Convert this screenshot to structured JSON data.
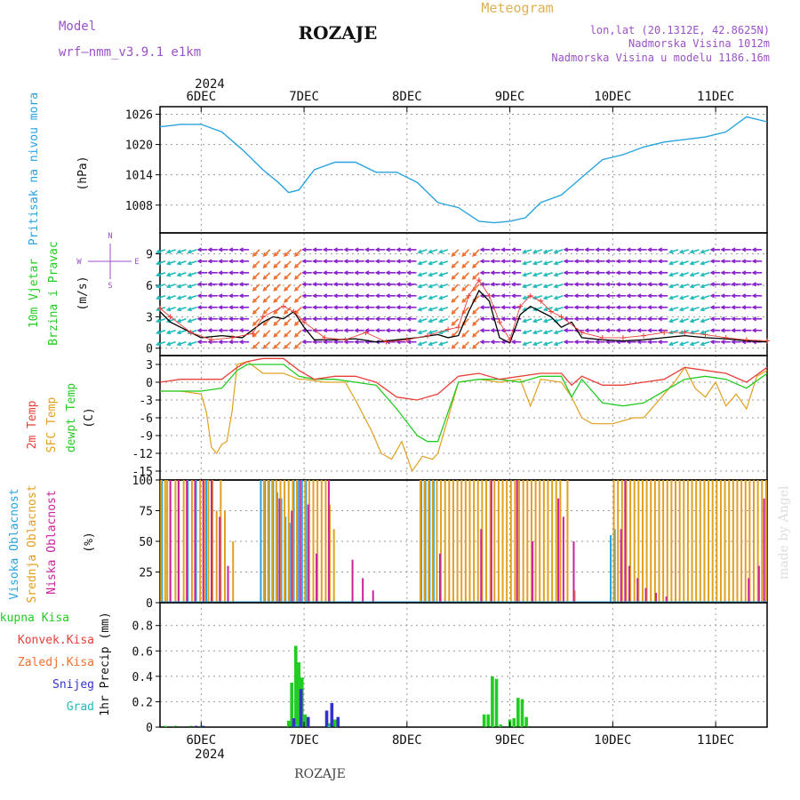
{
  "header": {
    "model_label": "Model",
    "model_name": "wrf–nmm_v3.9.1  e1km",
    "station": "ROZAJE",
    "meteogram": "Meteogram",
    "lonlat": "lon,lat (20.1312E, 42.8625N)",
    "elevation": "Nadmorska Visina 1012m",
    "model_elevation": "Nadmorska Visina u modelu 1186.16m",
    "watermark": "made by Angel",
    "footer_station": "ROZAJE"
  },
  "colors": {
    "pressure": "#29a3e0",
    "temp2m": "#e8403a",
    "sfc_temp": "#e0a020",
    "dewpoint": "#22cc22",
    "high_cloud": "#29a3e0",
    "mid_cloud": "#e0a020",
    "low_cloud": "#cc2299",
    "total_precip": "#22cc22",
    "convective": "#e8403a",
    "freezing": "#f07030",
    "snow": "#3333cc",
    "hail": "#22bbbb",
    "wind_arrow_slow": "#8822cc",
    "wind_arrow_fast": "#f07030",
    "grid": "#999999"
  },
  "time_axis": {
    "year": "2024",
    "days": [
      "6DEC",
      "7DEC",
      "8DEC",
      "9DEC",
      "10DEC",
      "11DEC"
    ],
    "start_day": 5.6,
    "end_day": 11.5
  },
  "chart_data": [
    {
      "type": "line",
      "panel": "pressure",
      "ylabel": [
        "Pritisak na nivou mora",
        "(hPa)"
      ],
      "yticks": [
        1008,
        1014,
        1020,
        1026
      ],
      "ylim": [
        1002.5,
        1027.5
      ],
      "grid": true,
      "series": [
        {
          "x": [
            5.6,
            5.8,
            6.0,
            6.2,
            6.4,
            6.6,
            6.75,
            6.85,
            6.95,
            7.1,
            7.3,
            7.5,
            7.7,
            7.9,
            8.1,
            8.3,
            8.5,
            8.7,
            8.85,
            9.0,
            9.15,
            9.3,
            9.5,
            9.7,
            9.9,
            10.1,
            10.3,
            10.5,
            10.7,
            10.9,
            11.1,
            11.3,
            11.5
          ],
          "y": [
            1023.5,
            1024,
            1024,
            1022.5,
            1019,
            1015,
            1012.5,
            1010.5,
            1011,
            1015,
            1016.5,
            1016.5,
            1014.5,
            1014.5,
            1012.5,
            1008.5,
            1007.5,
            1004.8,
            1004.5,
            1004.8,
            1005.5,
            1008.5,
            1010,
            1013.5,
            1017,
            1018,
            1019.5,
            1020.5,
            1021,
            1021.5,
            1022.5,
            1025.5,
            1024.5
          ]
        }
      ]
    },
    {
      "type": "line",
      "panel": "wind",
      "ylabel": [
        "10m Vjetar",
        "Brzina i Pravac",
        "(m/s)"
      ],
      "compass": {
        "n": "N",
        "s": "S",
        "e": "E",
        "w": "W"
      },
      "yticks": [
        0,
        3,
        6,
        9
      ],
      "ylim": [
        -0.7,
        11
      ],
      "grid": true,
      "series": [
        {
          "name": "speed",
          "x": [
            5.6,
            5.7,
            5.8,
            6.0,
            6.2,
            6.4,
            6.6,
            6.7,
            6.8,
            6.9,
            7.0,
            7.1,
            7.3,
            7.5,
            7.7,
            7.9,
            8.1,
            8.3,
            8.4,
            8.5,
            8.6,
            8.7,
            8.8,
            8.9,
            9.0,
            9.1,
            9.2,
            9.3,
            9.4,
            9.5,
            9.6,
            9.7,
            9.9,
            10.1,
            10.3,
            10.5,
            10.7,
            10.9,
            11.1,
            11.3,
            11.5
          ],
          "y": [
            3.5,
            2.5,
            2.0,
            1.0,
            1.2,
            1.0,
            2.5,
            3.0,
            2.8,
            3.5,
            2.0,
            0.8,
            0.8,
            0.9,
            0.6,
            0.8,
            1.0,
            1.3,
            1.0,
            1.2,
            3.5,
            5.5,
            4.5,
            1.0,
            0.5,
            3.2,
            4.0,
            3.5,
            3.0,
            2.0,
            2.5,
            1.0,
            0.8,
            0.7,
            0.8,
            1.0,
            1.2,
            1.0,
            0.9,
            0.7,
            0.6
          ]
        },
        {
          "name": "gust",
          "x": [
            5.6,
            5.7,
            5.9,
            6.1,
            6.3,
            6.5,
            6.6,
            6.8,
            6.9,
            7.0,
            7.2,
            7.4,
            7.6,
            7.8,
            8.0,
            8.2,
            8.4,
            8.5,
            8.6,
            8.7,
            8.8,
            8.9,
            9.0,
            9.1,
            9.2,
            9.3,
            9.4,
            9.5,
            9.7,
            9.9,
            10.1,
            10.3,
            10.5,
            10.7,
            10.9,
            11.1,
            11.3,
            11.5
          ],
          "y": [
            3.8,
            3.0,
            1.5,
            0.8,
            1.0,
            1.4,
            3.0,
            4.0,
            3.5,
            2.5,
            1.0,
            0.8,
            1.5,
            0.6,
            0.8,
            1.2,
            1.8,
            2.0,
            5.0,
            6.5,
            5.0,
            2.5,
            0.8,
            4.0,
            5.0,
            4.5,
            3.5,
            3.0,
            1.5,
            1.0,
            1.0,
            1.2,
            1.5,
            1.5,
            1.3,
            1.0,
            0.8,
            0.7
          ]
        }
      ]
    },
    {
      "type": "line",
      "panel": "temperature",
      "ylabel": [
        "2m Temp",
        "SFC Temp",
        "dewpt Temp",
        "(C)"
      ],
      "yticks": [
        3,
        0,
        -3,
        -6,
        -9,
        -12,
        -15
      ],
      "ylim": [
        -16.5,
        4.5
      ],
      "grid": true,
      "series": [
        {
          "name": "2m Temp",
          "x": [
            5.6,
            5.8,
            6.0,
            6.2,
            6.35,
            6.45,
            6.6,
            6.8,
            6.95,
            7.1,
            7.3,
            7.5,
            7.7,
            7.9,
            8.1,
            8.3,
            8.5,
            8.7,
            8.9,
            9.1,
            9.3,
            9.5,
            9.6,
            9.7,
            9.9,
            10.1,
            10.3,
            10.5,
            10.7,
            10.9,
            11.1,
            11.3,
            11.5
          ],
          "y": [
            0,
            0.5,
            0.5,
            0.5,
            2.5,
            3.5,
            4.0,
            4.0,
            2.0,
            0.5,
            1.0,
            1.0,
            0,
            -2.5,
            -3.0,
            -2.0,
            1.0,
            1.5,
            0.5,
            1.0,
            1.5,
            1.5,
            -0.5,
            1.0,
            -0.5,
            -0.5,
            0,
            0.5,
            2.5,
            2.0,
            1.5,
            0,
            2.5
          ]
        },
        {
          "name": "SFC Temp",
          "x": [
            5.6,
            5.8,
            6.0,
            6.05,
            6.1,
            6.15,
            6.2,
            6.25,
            6.3,
            6.35,
            6.45,
            6.6,
            6.8,
            6.95,
            7.0,
            7.2,
            7.4,
            7.5,
            7.65,
            7.75,
            7.85,
            7.95,
            8.05,
            8.15,
            8.25,
            8.3,
            8.5,
            8.7,
            8.9,
            9.1,
            9.2,
            9.3,
            9.5,
            9.6,
            9.7,
            9.8,
            10.0,
            10.2,
            10.3,
            10.5,
            10.6,
            10.7,
            10.8,
            10.9,
            11.0,
            11.1,
            11.2,
            11.3,
            11.4,
            11.5
          ],
          "y": [
            -1.5,
            -1.5,
            -2.0,
            -5.0,
            -11.0,
            -12.0,
            -10.5,
            -10.0,
            -5.0,
            3.0,
            3.5,
            1.5,
            1.5,
            0.5,
            0.5,
            0,
            0,
            -3.0,
            -8.0,
            -12.0,
            -13.0,
            -10.0,
            -15.0,
            -12.5,
            -13.0,
            -12.0,
            0,
            0.5,
            0,
            0.5,
            -4.0,
            0.5,
            0,
            -2.5,
            -6.0,
            -7.0,
            -7.0,
            -6.0,
            -6.0,
            -2.0,
            0,
            2.5,
            -1.0,
            -2.5,
            0,
            -4.0,
            -2.0,
            -4.5,
            1.0,
            2.0
          ]
        },
        {
          "name": "dewpt Temp",
          "x": [
            5.6,
            5.8,
            6.0,
            6.2,
            6.35,
            6.45,
            6.6,
            6.8,
            6.95,
            7.1,
            7.3,
            7.5,
            7.7,
            7.9,
            8.1,
            8.2,
            8.3,
            8.5,
            8.7,
            8.9,
            9.1,
            9.3,
            9.5,
            9.6,
            9.7,
            9.9,
            10.1,
            10.3,
            10.5,
            10.7,
            10.9,
            11.1,
            11.3,
            11.5
          ],
          "y": [
            -1.5,
            -1.5,
            -1.5,
            -1.0,
            2.0,
            3.0,
            3.0,
            3.0,
            1.0,
            0.5,
            0.5,
            0,
            -0.5,
            -4.5,
            -9.0,
            -10.0,
            -10.0,
            0,
            0.5,
            0.5,
            0,
            1.0,
            1.0,
            -2.5,
            0.5,
            -3.5,
            -4.0,
            -3.5,
            -1.5,
            0.5,
            1.0,
            0.5,
            -1.0,
            1.5
          ]
        }
      ]
    },
    {
      "type": "bar",
      "panel": "cloud",
      "ylabel": [
        "Visoka Oblacnost",
        "Srednja Oblacnost",
        "Niska Oblacnost",
        "(%)"
      ],
      "yticks": [
        0,
        25,
        50,
        75,
        100
      ],
      "ylim": [
        0,
        100
      ],
      "grid": true,
      "series": [
        {
          "name": "Visoka Oblacnost",
          "x": [
            5.62,
            5.7,
            5.78,
            5.87,
            5.95,
            6.05,
            6.58,
            6.62,
            6.66,
            6.7,
            6.74,
            6.78,
            6.82,
            6.86,
            6.9,
            6.94,
            6.98,
            7.02,
            8.14,
            8.18,
            8.22,
            8.26,
            9.98,
            10.02
          ],
          "values": [
            100,
            100,
            100,
            100,
            100,
            100,
            100,
            100,
            100,
            100,
            90,
            85,
            70,
            65,
            100,
            100,
            100,
            100,
            100,
            100,
            100,
            100,
            55,
            60
          ]
        },
        {
          "name": "Srednja Oblacnost",
          "x": [
            5.6,
            5.64,
            5.66,
            5.74,
            5.82,
            5.9,
            5.98,
            6.02,
            6.06,
            6.1,
            6.14,
            6.18,
            6.22,
            6.3,
            6.6,
            6.64,
            6.68,
            6.72,
            6.76,
            6.8,
            6.84,
            6.88,
            6.92,
            7.0,
            7.04,
            7.08,
            7.12,
            7.16,
            7.2,
            7.24,
            7.28,
            8.12,
            8.16,
            8.2,
            8.24,
            8.28,
            8.32,
            8.36,
            8.4,
            8.44,
            8.48,
            8.52,
            8.56,
            8.6,
            8.64,
            8.68,
            8.72,
            8.76,
            8.8,
            8.84,
            8.88,
            8.92,
            8.96,
            9.0,
            9.04,
            9.08,
            9.12,
            9.16,
            9.2,
            9.24,
            9.28,
            9.32,
            9.36,
            9.4,
            9.44,
            9.48,
            9.55,
            9.62,
            10.0,
            10.04,
            10.08,
            10.12,
            10.16,
            10.2,
            10.24,
            10.28,
            10.32,
            10.36,
            10.4,
            10.44,
            10.48,
            10.52,
            10.56,
            10.6,
            10.64,
            10.68,
            10.72,
            10.76,
            10.8,
            10.84,
            10.88,
            10.92,
            10.96,
            11.0,
            11.04,
            11.08,
            11.12,
            11.16,
            11.2,
            11.24,
            11.28,
            11.32,
            11.36,
            11.4,
            11.44,
            11.48
          ],
          "values": [
            100,
            100,
            100,
            100,
            100,
            100,
            100,
            100,
            100,
            100,
            75,
            100,
            75,
            50,
            100,
            100,
            100,
            100,
            100,
            100,
            100,
            100,
            100,
            100,
            100,
            100,
            100,
            100,
            100,
            80,
            60,
            100,
            100,
            100,
            100,
            100,
            100,
            100,
            100,
            100,
            100,
            100,
            100,
            100,
            100,
            100,
            100,
            100,
            100,
            100,
            100,
            100,
            100,
            100,
            100,
            100,
            100,
            100,
            100,
            100,
            100,
            100,
            100,
            100,
            100,
            100,
            100,
            10,
            100,
            100,
            100,
            100,
            100,
            100,
            100,
            100,
            100,
            100,
            100,
            100,
            100,
            100,
            100,
            100,
            100,
            100,
            100,
            100,
            100,
            100,
            100,
            100,
            100,
            100,
            100,
            100,
            100,
            100,
            100,
            100,
            100,
            100,
            100,
            100,
            100,
            100
          ]
        },
        {
          "name": "Niska Oblacnost",
          "x": [
            5.68,
            5.76,
            5.84,
            5.92,
            6.0,
            6.08,
            6.16,
            6.24,
            6.74,
            6.86,
            6.94,
            7.02,
            7.1,
            7.22,
            7.45,
            7.55,
            7.65,
            8.3,
            8.7,
            8.8,
            9.05,
            9.2,
            9.45,
            9.5,
            9.6,
            10.06,
            10.1,
            10.14,
            10.22,
            10.3,
            10.4,
            10.5,
            11.3,
            11.4,
            11.45
          ],
          "values": [
            100,
            100,
            100,
            100,
            100,
            100,
            70,
            30,
            85,
            75,
            100,
            80,
            40,
            100,
            35,
            20,
            10,
            40,
            60,
            100,
            100,
            50,
            85,
            70,
            50,
            60,
            100,
            30,
            20,
            12,
            8,
            5,
            20,
            30,
            85
          ]
        }
      ]
    },
    {
      "type": "bar",
      "panel": "precipitation",
      "ylabel": [
        "1hr Precip (mm)"
      ],
      "legend": [
        "Ukupna Kisa",
        "Konvek.Kisa",
        "Zaledj.Kisa",
        "Snijeg",
        "Grad"
      ],
      "yticks": [
        0,
        0.2,
        0.4,
        0.6,
        0.8
      ],
      "ylim": [
        0,
        0.98
      ],
      "grid": true,
      "series": [
        {
          "name": "Ukupna Kisa",
          "x": [
            5.65,
            5.75,
            5.9,
            6.0,
            6.85,
            6.88,
            6.92,
            6.95,
            6.98,
            7.01,
            7.25,
            7.3,
            8.75,
            8.79,
            8.83,
            8.87,
            8.91,
            9.0,
            9.04,
            9.08,
            9.12,
            9.16
          ],
          "values": [
            0.01,
            0.01,
            0.01,
            0.01,
            0.05,
            0.35,
            0.64,
            0.51,
            0.39,
            0.1,
            0.03,
            0.06,
            0.1,
            0.1,
            0.4,
            0.38,
            0.02,
            0.06,
            0.07,
            0.23,
            0.22,
            0.08
          ]
        },
        {
          "name": "Snijeg",
          "x": [
            5.95,
            6.02,
            6.9,
            6.97,
            7.04,
            7.22,
            7.27,
            7.33
          ],
          "values": [
            0.01,
            0.01,
            0.07,
            0.3,
            0.08,
            0.13,
            0.19,
            0.08
          ]
        },
        {
          "name": "Grad",
          "x": [
            6.93,
            7.24
          ],
          "values": [
            0.02,
            0.01
          ]
        }
      ]
    }
  ]
}
